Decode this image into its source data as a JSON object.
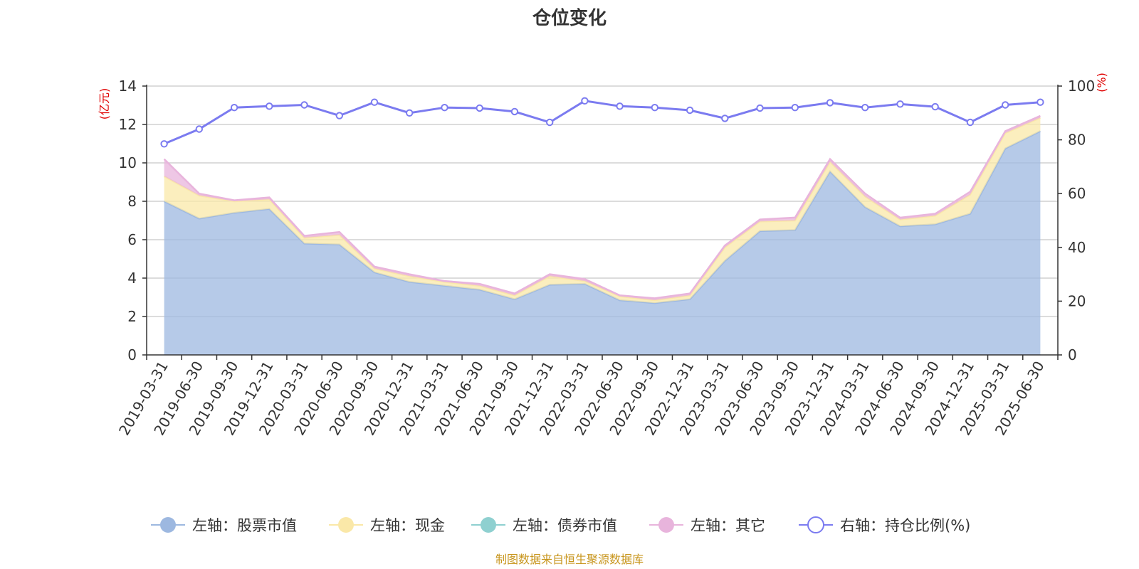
{
  "chart_data": {
    "type": "area",
    "title": "仓位变化",
    "left_unit": "(亿元)",
    "right_unit": "(%)",
    "source": "制图数据来自恒生聚源数据库",
    "categories": [
      "2019-03-31",
      "2019-06-30",
      "2019-09-30",
      "2019-12-31",
      "2020-03-31",
      "2020-06-30",
      "2020-09-30",
      "2020-12-31",
      "2021-03-31",
      "2021-06-30",
      "2021-09-30",
      "2021-12-31",
      "2022-03-31",
      "2022-06-30",
      "2022-09-30",
      "2022-12-31",
      "2023-03-31",
      "2023-06-30",
      "2023-09-30",
      "2023-12-31",
      "2024-03-31",
      "2024-06-30",
      "2024-09-30",
      "2024-12-31",
      "2025-03-31",
      "2025-06-30"
    ],
    "left_axis": {
      "min": 0,
      "max": 14,
      "ticks": [
        0,
        2,
        4,
        6,
        8,
        10,
        12,
        14
      ]
    },
    "right_axis": {
      "min": 0,
      "max": 100,
      "ticks": [
        0,
        20,
        40,
        60,
        80,
        100
      ]
    },
    "grid": true,
    "legend_position": "bottom",
    "series": [
      {
        "key": "stock",
        "name": "左轴：股票市值",
        "axis": "left",
        "color": "#9db8e0",
        "values": [
          8.0,
          7.1,
          7.4,
          7.6,
          5.8,
          5.75,
          4.3,
          3.8,
          3.6,
          3.4,
          2.9,
          3.65,
          3.7,
          2.85,
          2.7,
          2.9,
          4.9,
          6.45,
          6.5,
          9.55,
          7.7,
          6.7,
          6.8,
          7.35,
          10.75,
          11.65
        ]
      },
      {
        "key": "cash",
        "name": "左轴：现金",
        "axis": "left",
        "color": "#fae8a8",
        "values": [
          1.3,
          1.2,
          0.6,
          0.5,
          0.3,
          0.5,
          0.2,
          0.3,
          0.2,
          0.2,
          0.2,
          0.45,
          0.15,
          0.2,
          0.15,
          0.2,
          0.7,
          0.5,
          0.5,
          0.5,
          0.55,
          0.35,
          0.45,
          1.0,
          0.8,
          0.7
        ]
      },
      {
        "key": "bond",
        "name": "左轴：债券市值",
        "axis": "left",
        "color": "#8fd0d0",
        "values": [
          0,
          0,
          0,
          0,
          0,
          0,
          0,
          0,
          0,
          0,
          0,
          0,
          0,
          0,
          0,
          0,
          0,
          0,
          0,
          0,
          0,
          0,
          0,
          0,
          0,
          0
        ]
      },
      {
        "key": "other",
        "name": "左轴：其它",
        "axis": "left",
        "color": "#e8b4dc",
        "values": [
          0.9,
          0.1,
          0.05,
          0.1,
          0.1,
          0.15,
          0.1,
          0.1,
          0.05,
          0.1,
          0.1,
          0.1,
          0.1,
          0.05,
          0.1,
          0.1,
          0.1,
          0.1,
          0.15,
          0.15,
          0.15,
          0.1,
          0.1,
          0.15,
          0.1,
          0.1
        ]
      },
      {
        "key": "ratio",
        "name": "右轴：持仓比例(%)",
        "axis": "right",
        "color": "#7b7bf0",
        "values": [
          78.5,
          84.0,
          92.0,
          92.5,
          93.0,
          89.0,
          94.0,
          90.0,
          92.0,
          91.8,
          90.5,
          86.5,
          94.5,
          92.5,
          92.0,
          91.0,
          88.0,
          91.8,
          92.0,
          93.8,
          92.0,
          93.3,
          92.3,
          86.5,
          93.0,
          94.0
        ]
      }
    ]
  }
}
